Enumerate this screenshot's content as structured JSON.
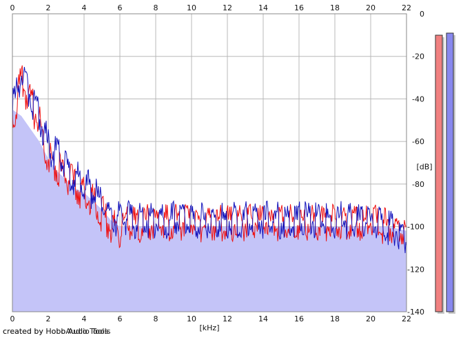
{
  "chart_data": {
    "type": "line",
    "xlabel": "[kHz]",
    "ylabel": "[dB]",
    "xlim": [
      0,
      22
    ],
    "ylim": [
      -140,
      0
    ],
    "xticks": [
      0,
      2,
      4,
      6,
      8,
      10,
      12,
      14,
      16,
      18,
      20,
      22
    ],
    "xtick_labels": [
      "0",
      "2",
      "4",
      "6",
      "8",
      "10",
      "12",
      "14",
      "16",
      "18",
      "20",
      "22"
    ],
    "yticks": [
      0,
      -20,
      -40,
      -60,
      -80,
      -100,
      -120,
      -140
    ],
    "ytick_labels": [
      "0",
      "-20",
      "-40",
      "-60",
      "-80",
      "-100",
      "-120",
      "-140"
    ],
    "grid": true,
    "series": [
      {
        "color": "#ee1111",
        "x": [
          0,
          0.5,
          1,
          1.5,
          2,
          2.5,
          3,
          3.5,
          4,
          4.5,
          5,
          5.5,
          6,
          6.5,
          7,
          8,
          9,
          10,
          11,
          12,
          13,
          14,
          15,
          16,
          17,
          18,
          19,
          20,
          21,
          22
        ],
        "y": [
          -50,
          -32,
          -42,
          -50,
          -68,
          -72,
          -77,
          -81,
          -84,
          -88,
          -94,
          -99,
          -101,
          -99,
          -99,
          -98,
          -98,
          -98,
          -99,
          -98,
          -98,
          -98,
          -98,
          -98,
          -98,
          -98,
          -98,
          -98,
          -100,
          -103
        ]
      },
      {
        "color": "#1111bb",
        "x": [
          0,
          0.5,
          1,
          1.5,
          2,
          2.5,
          3,
          3.5,
          4,
          4.5,
          5,
          5.5,
          6,
          6.5,
          7,
          8,
          9,
          10,
          11,
          12,
          13,
          14,
          15,
          16,
          17,
          18,
          19,
          20,
          21,
          22
        ],
        "y": [
          -45,
          -28,
          -38,
          -48,
          -62,
          -66,
          -72,
          -77,
          -80,
          -84,
          -89,
          -95,
          -97,
          -96,
          -97,
          -97,
          -97,
          -97,
          -97,
          -97,
          -97,
          -97,
          -97,
          -97,
          -97,
          -97,
          -97,
          -98,
          -100,
          -104
        ]
      },
      {
        "color": "#c4c4f8",
        "x": [
          0,
          0.5,
          1,
          1.5,
          2,
          2.5,
          3,
          3.5,
          4,
          4.5,
          5,
          5.5,
          6,
          6.5,
          7,
          8,
          9,
          10,
          11,
          12,
          13,
          14,
          15,
          16,
          17,
          18,
          19,
          20,
          21,
          22
        ],
        "y": [
          -45,
          -48,
          -54,
          -60,
          -68,
          -74,
          -78,
          -82,
          -84,
          -88,
          -92,
          -97,
          -100,
          -100,
          -100,
          -100,
          -100,
          -100,
          -100,
          -100,
          -100,
          -100,
          -100,
          -100,
          -100,
          -100,
          -100,
          -100,
          -100,
          -102
        ]
      }
    ],
    "level_bars": [
      {
        "color": "#f08080",
        "top_db": -10
      },
      {
        "color": "#8888ee",
        "top_db": -9
      }
    ],
    "footer_text": "created by Hobo Audio Tools",
    "footer_text_overlap": "created by HobbAudio Tools"
  }
}
